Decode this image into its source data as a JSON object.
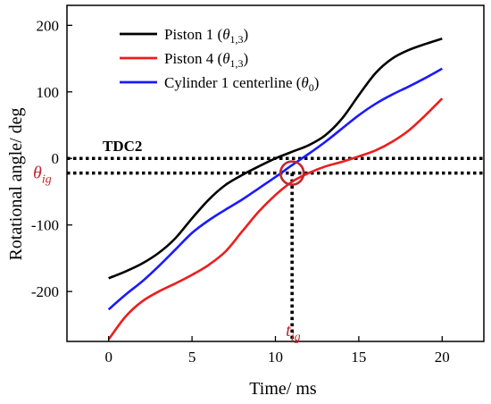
{
  "chart_data": {
    "type": "line",
    "xlabel": "Time/ ms",
    "ylabel": "Rotational angle/ deg",
    "xlim": [
      -2.5,
      22.5
    ],
    "ylim": [
      -275,
      230
    ],
    "xticks": [
      0,
      5,
      10,
      15,
      20
    ],
    "yticks": [
      -200,
      -100,
      0,
      100,
      200
    ],
    "xtick_labels": [
      "0",
      "5",
      "10",
      "15",
      "20"
    ],
    "ytick_labels": [
      "-200",
      "-100",
      "0",
      "100",
      "200"
    ],
    "legend_position": "top-left",
    "series": [
      {
        "name": "Piston 1 (θ1,3)",
        "label_main": "Piston 1 (",
        "label_symbol": "θ",
        "label_sub": "1,3",
        "label_close": ")",
        "color": "#000000",
        "x": [
          0,
          1,
          2,
          3,
          4,
          5,
          6,
          7,
          8,
          9,
          10,
          11,
          12,
          13,
          14,
          15,
          16,
          17,
          18,
          19,
          20
        ],
        "y": [
          -180,
          -170,
          -158,
          -142,
          -120,
          -90,
          -62,
          -40,
          -25,
          -12,
          0,
          10,
          20,
          35,
          60,
          95,
          128,
          150,
          163,
          172,
          180
        ]
      },
      {
        "name": "Piston 4 (θ1,3)",
        "label_main": "Piston 4 (",
        "label_symbol": "θ",
        "label_sub": "1,3",
        "label_close": ")",
        "color": "#ee1c1c",
        "x": [
          0,
          1,
          2,
          3,
          4,
          5,
          6,
          7,
          8,
          9,
          10,
          11,
          12,
          13,
          14,
          15,
          16,
          17,
          18,
          19,
          20
        ],
        "y": [
          -272,
          -238,
          -215,
          -200,
          -188,
          -175,
          -160,
          -140,
          -110,
          -80,
          -55,
          -35,
          -22,
          -12,
          -5,
          3,
          12,
          25,
          42,
          65,
          90
        ]
      },
      {
        "name": "Cylinder 1 centerline (θ0)",
        "label_main": "Cylinder 1 centerline (",
        "label_symbol": "θ",
        "label_sub": "0",
        "label_close": ")",
        "color": "#1a1aff",
        "x": [
          0,
          1,
          2,
          3,
          4,
          5,
          6,
          7,
          8,
          9,
          10,
          11,
          12,
          13,
          14,
          15,
          16,
          17,
          18,
          19,
          20
        ],
        "y": [
          -227,
          -205,
          -185,
          -162,
          -137,
          -112,
          -93,
          -77,
          -62,
          -45,
          -28,
          -10,
          7,
          25,
          45,
          65,
          82,
          96,
          108,
          121,
          135
        ]
      }
    ],
    "annotations": {
      "tdc_label": "TDC2",
      "tdc_value": 0,
      "theta_ig_value": -22,
      "t_ig_value": 11.0,
      "theta_ig_symbol": "θ",
      "theta_ig_sub": "ig",
      "t_ig_symbol": "t",
      "t_ig_sub": "ig",
      "marker_color": "#c1272d"
    }
  }
}
